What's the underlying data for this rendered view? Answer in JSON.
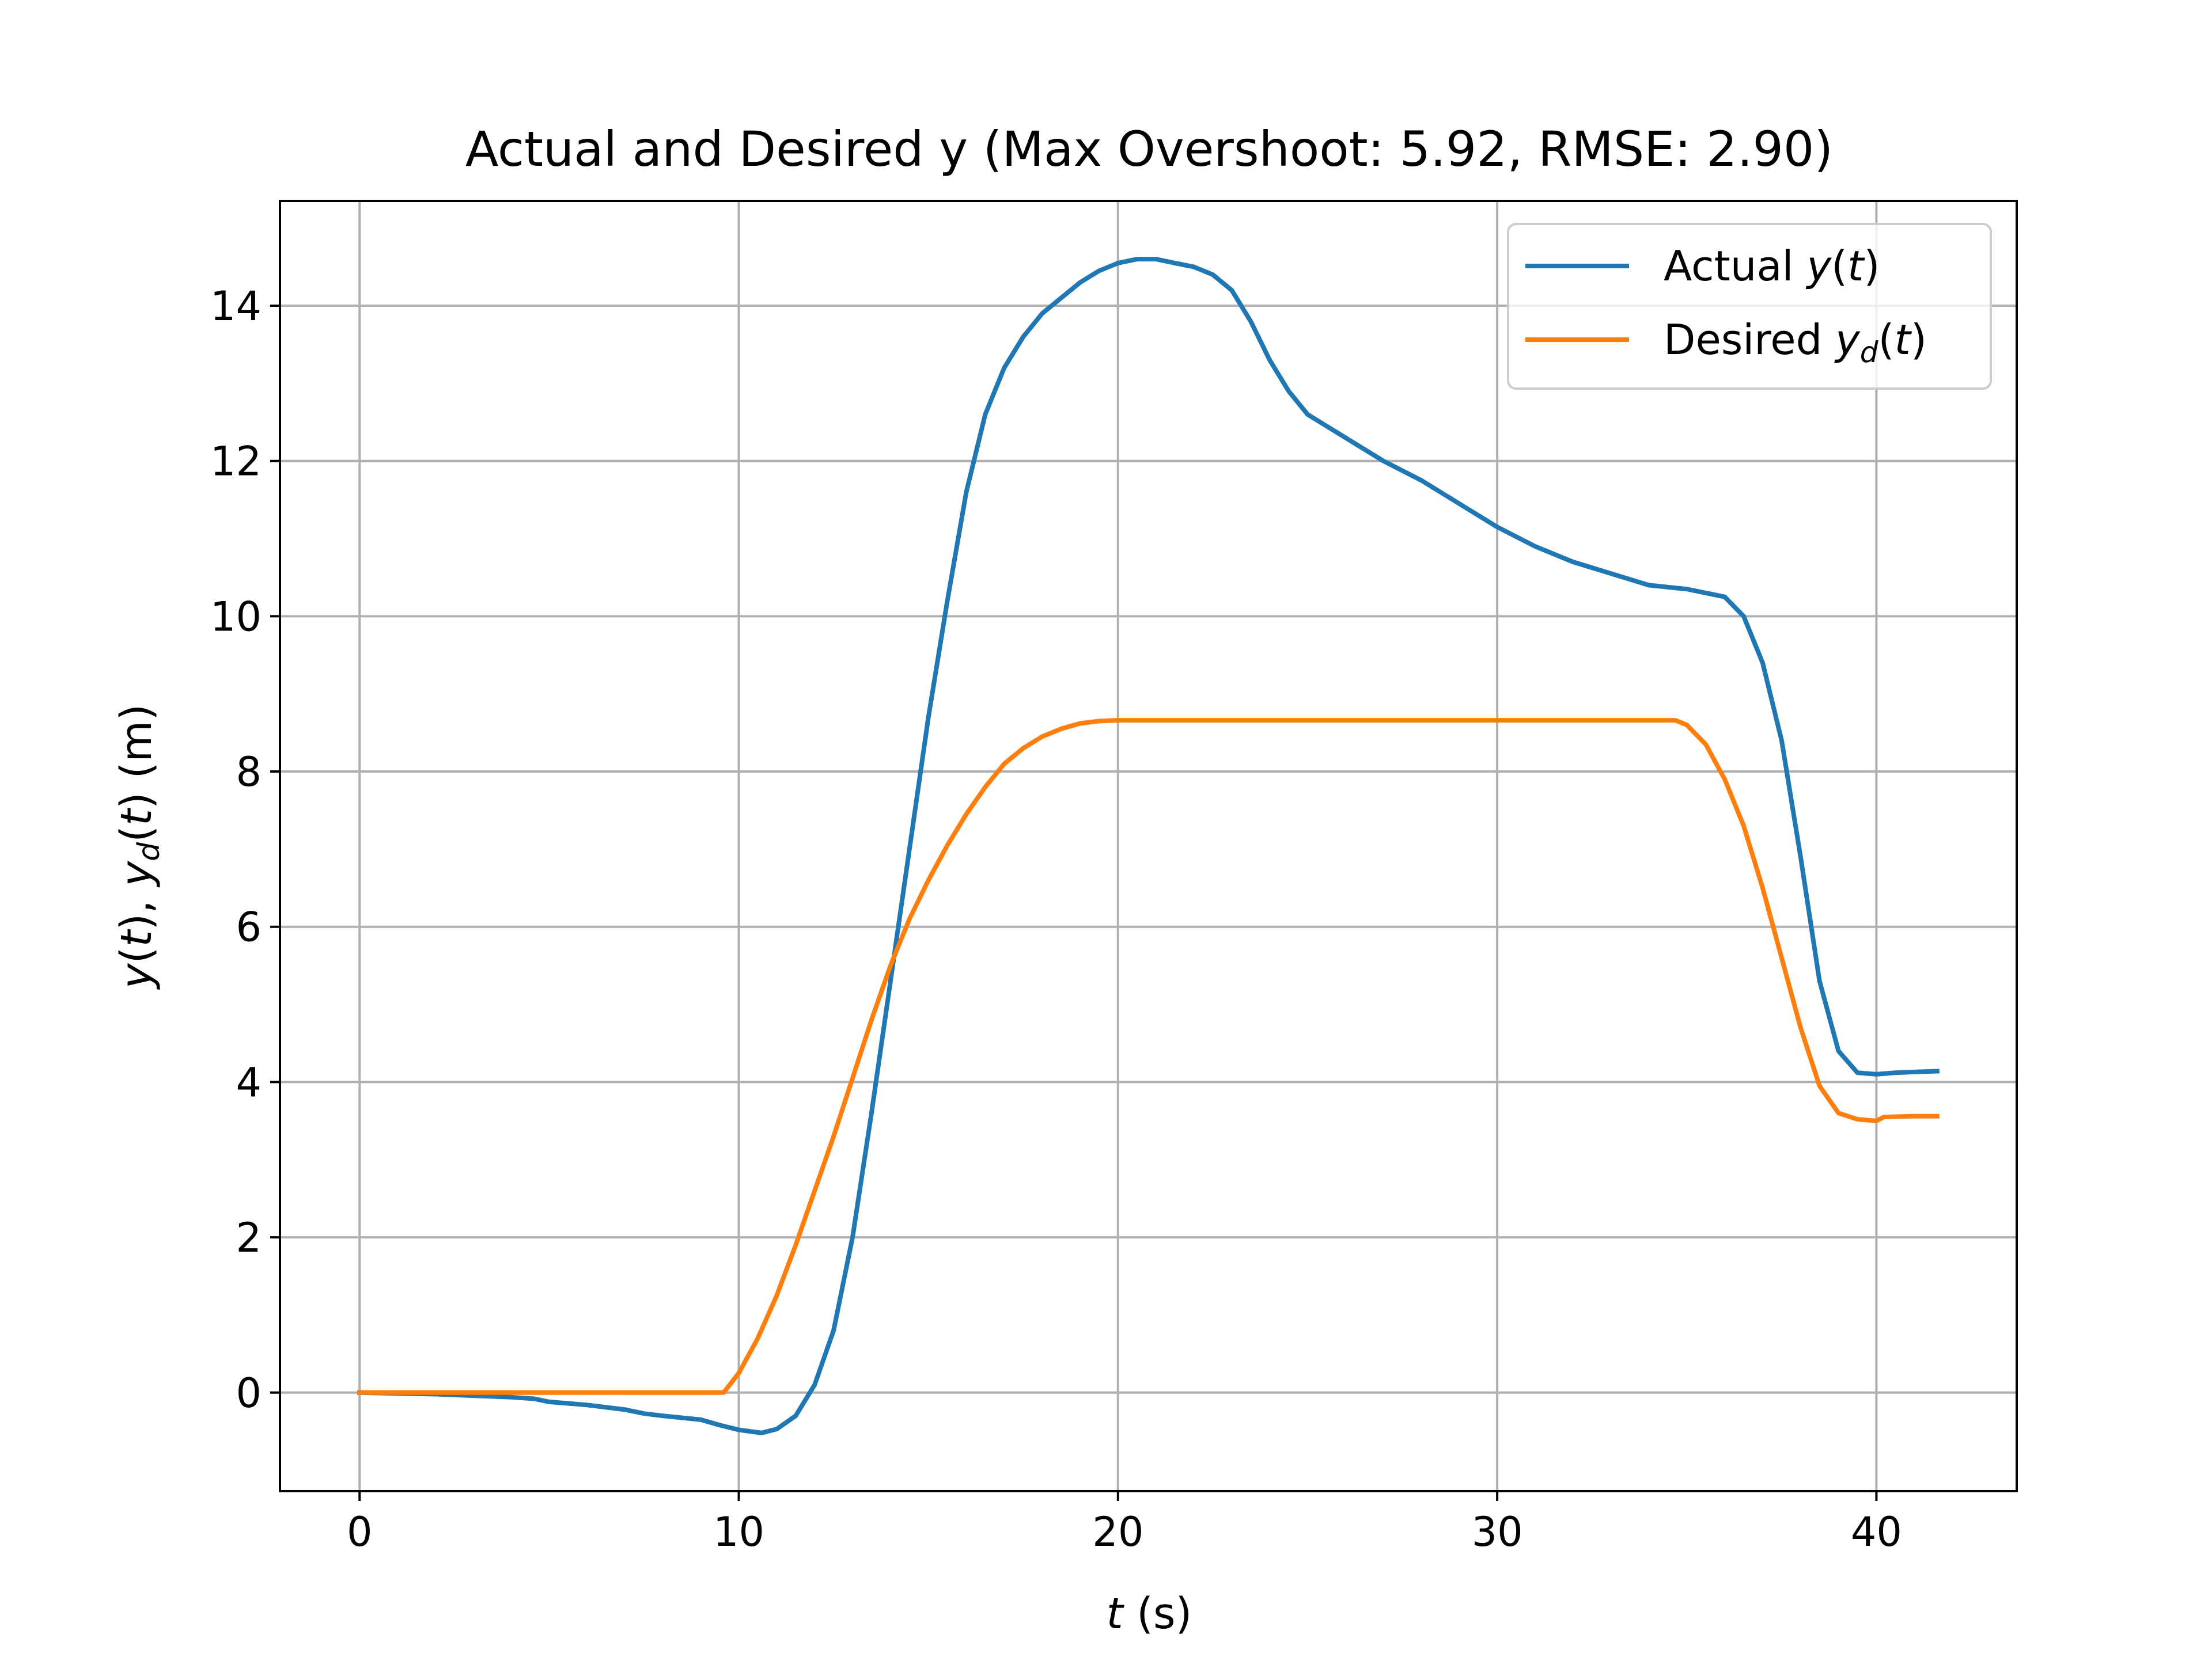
{
  "chart_data": {
    "type": "line",
    "title": "Actual and Desired y (Max Overshoot: 5.92, RMSE: 2.90)",
    "xlabel": "t (s)",
    "ylabel": "y(t), y_d(t) (m)",
    "xlim": [
      -2.1,
      43.7
    ],
    "ylim": [
      -1.27,
      15.35
    ],
    "xticks": [
      0,
      10,
      20,
      30,
      40
    ],
    "yticks": [
      0,
      2,
      4,
      6,
      8,
      10,
      12,
      14
    ],
    "grid": true,
    "legend_position": "top-right",
    "series": [
      {
        "name": "Actual y(t)",
        "color": "#1f77b4",
        "x": [
          0,
          2,
          3,
          4,
          4.6,
          5,
          6,
          7,
          7.5,
          8,
          9,
          9.5,
          10,
          10.6,
          11,
          11.5,
          12,
          12.5,
          13,
          13.5,
          14,
          14.5,
          15,
          15.5,
          16,
          16.5,
          17,
          17.5,
          18,
          18.5,
          19,
          19.5,
          20,
          20.5,
          21,
          21.5,
          22,
          22.5,
          23,
          23.5,
          24,
          24.5,
          25,
          26,
          27,
          28,
          29,
          30,
          31,
          32,
          33,
          34,
          35,
          35.5,
          36,
          36.5,
          37,
          37.5,
          38,
          38.5,
          39,
          39.5,
          40,
          40.5,
          41,
          41.6
        ],
        "y": [
          0,
          -0.02,
          -0.04,
          -0.06,
          -0.08,
          -0.12,
          -0.16,
          -0.22,
          -0.27,
          -0.3,
          -0.35,
          -0.42,
          -0.48,
          -0.52,
          -0.47,
          -0.3,
          0.1,
          0.8,
          2.0,
          3.6,
          5.3,
          7.0,
          8.7,
          10.2,
          11.6,
          12.6,
          13.2,
          13.6,
          13.9,
          14.1,
          14.3,
          14.45,
          14.55,
          14.6,
          14.6,
          14.55,
          14.5,
          14.4,
          14.2,
          13.8,
          13.3,
          12.9,
          12.6,
          12.3,
          12.0,
          11.75,
          11.45,
          11.15,
          10.9,
          10.7,
          10.55,
          10.4,
          10.35,
          10.3,
          10.25,
          10.0,
          9.4,
          8.4,
          6.9,
          5.3,
          4.4,
          4.12,
          4.1,
          4.12,
          4.13,
          4.14
        ]
      },
      {
        "name": "Desired y_d(t)",
        "color": "#ff7f0e",
        "x": [
          0,
          9.6,
          10,
          10.5,
          11,
          11.5,
          12,
          12.5,
          13,
          13.5,
          14,
          14.5,
          15,
          15.5,
          16,
          16.5,
          17,
          17.5,
          18,
          18.5,
          19,
          19.5,
          20,
          34.7,
          35,
          35.5,
          36,
          36.5,
          37,
          37.5,
          38,
          38.5,
          39,
          39.5,
          40,
          40.2,
          41,
          41.6
        ],
        "y": [
          0,
          0,
          0.25,
          0.7,
          1.25,
          1.9,
          2.6,
          3.3,
          4.05,
          4.8,
          5.5,
          6.1,
          6.6,
          7.05,
          7.45,
          7.8,
          8.1,
          8.3,
          8.45,
          8.55,
          8.62,
          8.65,
          8.66,
          8.66,
          8.6,
          8.35,
          7.9,
          7.3,
          6.5,
          5.6,
          4.7,
          3.95,
          3.6,
          3.52,
          3.5,
          3.55,
          3.56,
          3.56
        ]
      }
    ]
  }
}
